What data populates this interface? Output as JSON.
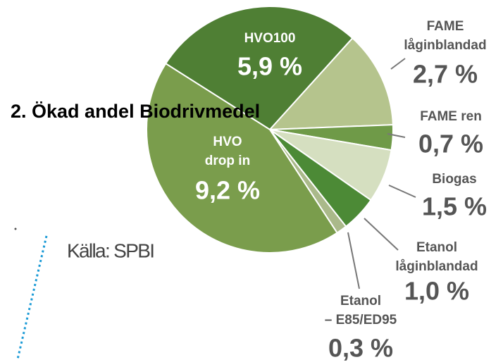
{
  "chart_data": {
    "type": "pie",
    "title": "2. Ökad andel Biodrivmedel",
    "source": "Källa: SPBI",
    "categories": [
      [
        "HVO100"
      ],
      [
        "FAME",
        "låginblandad"
      ],
      [
        "FAME ren"
      ],
      [
        "Biogas"
      ],
      [
        "Etanol",
        "låginblandad"
      ],
      [
        "Etanol",
        "– E85/ED95"
      ],
      [
        "HVO",
        "drop in"
      ]
    ],
    "values": [
      5.9,
      2.7,
      0.7,
      1.5,
      1.0,
      0.3,
      9.2
    ],
    "value_labels": [
      "5,9 %",
      "2,7 %",
      "0,7 %",
      "1,5 %",
      "1,0 %",
      "0,3 %",
      "9,2 %"
    ],
    "colors": [
      "#4f7f34",
      "#b5c48d",
      "#6f9a48",
      "#d5dfc0",
      "#4c8a36",
      "#aab98a",
      "#7a9d4c"
    ]
  }
}
